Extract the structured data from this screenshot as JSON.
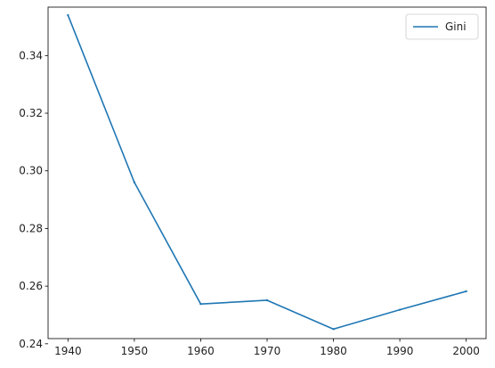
{
  "chart_data": {
    "type": "line",
    "x": [
      1940,
      1950,
      1960,
      1970,
      1980,
      1990,
      2000
    ],
    "series": [
      {
        "name": "Gini",
        "values": [
          0.354,
          0.296,
          0.2538,
          0.2551,
          0.2451,
          0.2518,
          0.2582
        ],
        "color": "#1f77b4"
      }
    ],
    "xlim": [
      1937,
      2003
    ],
    "ylim": [
      0.2418,
      0.3568
    ],
    "xticks": [
      1940,
      1950,
      1960,
      1970,
      1980,
      1990,
      2000
    ],
    "xtick_labels": [
      "1940",
      "1950",
      "1960",
      "1970",
      "1980",
      "1990",
      "2000"
    ],
    "yticks": [
      0.24,
      0.26,
      0.28,
      0.3,
      0.32,
      0.34
    ],
    "ytick_labels": [
      "0.24",
      "0.26",
      "0.28",
      "0.30",
      "0.32",
      "0.34"
    ],
    "grid": false,
    "legend_position": "top-right"
  }
}
